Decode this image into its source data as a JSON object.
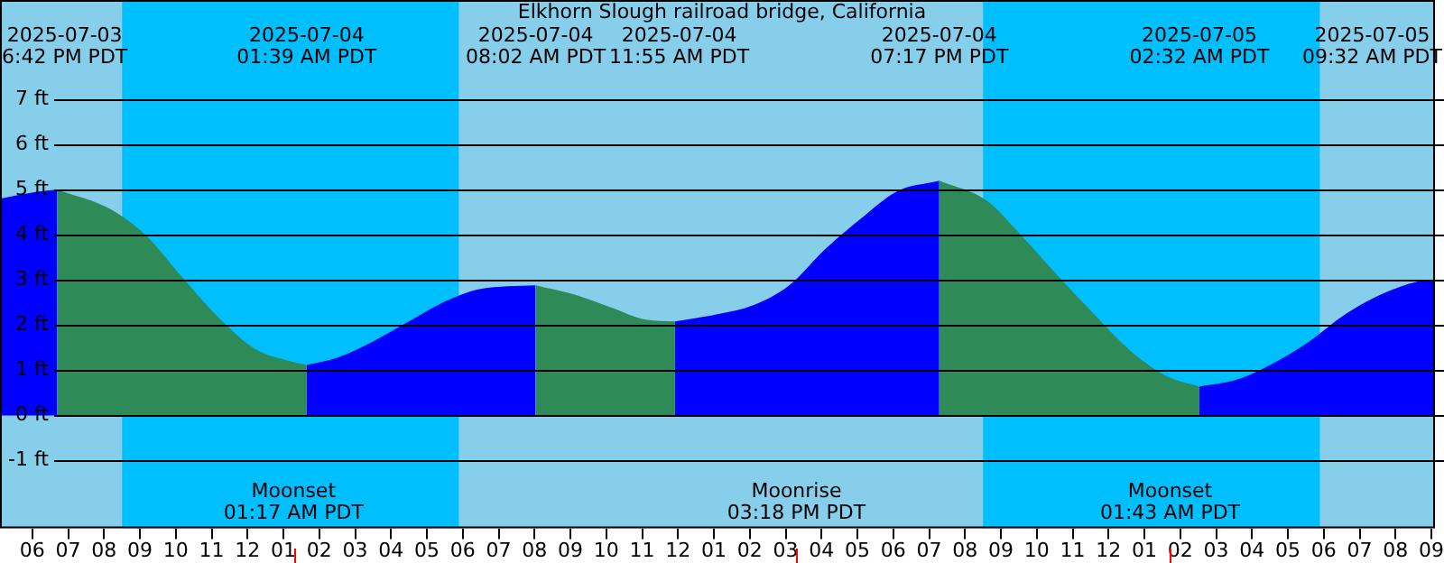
{
  "chart_data": {
    "type": "area",
    "title": "Elkhorn Slough railroad bridge, California",
    "xlim": [
      "2025-07-03T17:06",
      "2025-07-05T09:06"
    ],
    "xticks": [
      {
        "value": "2025-07-03T18:00",
        "label": "06"
      },
      {
        "value": "2025-07-03T19:00",
        "label": "07"
      },
      {
        "value": "2025-07-03T20:00",
        "label": "08"
      },
      {
        "value": "2025-07-03T21:00",
        "label": "09"
      },
      {
        "value": "2025-07-03T22:00",
        "label": "10"
      },
      {
        "value": "2025-07-03T23:00",
        "label": "11"
      },
      {
        "value": "2025-07-04T00:00",
        "label": "12"
      },
      {
        "value": "2025-07-04T01:00",
        "label": "01"
      },
      {
        "value": "2025-07-04T02:00",
        "label": "02"
      },
      {
        "value": "2025-07-04T03:00",
        "label": "03"
      },
      {
        "value": "2025-07-04T04:00",
        "label": "04"
      },
      {
        "value": "2025-07-04T05:00",
        "label": "05"
      },
      {
        "value": "2025-07-04T06:00",
        "label": "06"
      },
      {
        "value": "2025-07-04T07:00",
        "label": "07"
      },
      {
        "value": "2025-07-04T08:00",
        "label": "08"
      },
      {
        "value": "2025-07-04T09:00",
        "label": "09"
      },
      {
        "value": "2025-07-04T10:00",
        "label": "10"
      },
      {
        "value": "2025-07-04T11:00",
        "label": "11"
      },
      {
        "value": "2025-07-04T12:00",
        "label": "12"
      },
      {
        "value": "2025-07-04T13:00",
        "label": "01"
      },
      {
        "value": "2025-07-04T14:00",
        "label": "02"
      },
      {
        "value": "2025-07-04T15:00",
        "label": "03"
      },
      {
        "value": "2025-07-04T16:00",
        "label": "04"
      },
      {
        "value": "2025-07-04T17:00",
        "label": "05"
      },
      {
        "value": "2025-07-04T18:00",
        "label": "06"
      },
      {
        "value": "2025-07-04T19:00",
        "label": "07"
      },
      {
        "value": "2025-07-04T20:00",
        "label": "08"
      },
      {
        "value": "2025-07-04T21:00",
        "label": "09"
      },
      {
        "value": "2025-07-04T22:00",
        "label": "10"
      },
      {
        "value": "2025-07-04T23:00",
        "label": "11"
      },
      {
        "value": "2025-07-05T00:00",
        "label": "12"
      },
      {
        "value": "2025-07-05T01:00",
        "label": "01"
      },
      {
        "value": "2025-07-05T02:00",
        "label": "02"
      },
      {
        "value": "2025-07-05T03:00",
        "label": "03"
      },
      {
        "value": "2025-07-05T04:00",
        "label": "04"
      },
      {
        "value": "2025-07-05T05:00",
        "label": "05"
      },
      {
        "value": "2025-07-05T06:00",
        "label": "06"
      },
      {
        "value": "2025-07-05T07:00",
        "label": "07"
      },
      {
        "value": "2025-07-05T08:00",
        "label": "08"
      },
      {
        "value": "2025-07-05T09:00",
        "label": "09"
      }
    ],
    "ylim": [
      -2.5,
      9.2
    ],
    "yticks": [
      {
        "value": -1,
        "label": "-1 ft"
      },
      {
        "value": 0,
        "label": "0 ft"
      },
      {
        "value": 1,
        "label": "1 ft"
      },
      {
        "value": 2,
        "label": "2 ft"
      },
      {
        "value": 3,
        "label": "3 ft"
      },
      {
        "value": 4,
        "label": "4 ft"
      },
      {
        "value": 5,
        "label": "5 ft"
      },
      {
        "value": 6,
        "label": "6 ft"
      },
      {
        "value": 7,
        "label": "7 ft"
      }
    ],
    "grid": "y",
    "legend": false,
    "bands": [
      {
        "axis": "x",
        "from": "2025-07-03T17:06",
        "to": "2025-07-03T20:30",
        "color": "#87ceeb"
      },
      {
        "axis": "x",
        "from": "2025-07-03T20:30",
        "to": "2025-07-04T05:54",
        "color": "#00bfff"
      },
      {
        "axis": "x",
        "from": "2025-07-04T05:54",
        "to": "2025-07-04T20:30",
        "color": "#87ceeb"
      },
      {
        "axis": "x",
        "from": "2025-07-04T20:30",
        "to": "2025-07-05T05:54",
        "color": "#00bfff"
      },
      {
        "axis": "x",
        "from": "2025-07-05T05:54",
        "to": "2025-07-05T09:06",
        "color": "#87ceeb"
      }
    ],
    "ref_lines": [
      {
        "axis": "x",
        "value": "2025-07-04T01:17",
        "label": "Moonset\n01:17 AM PDT",
        "color": "#ff0000"
      },
      {
        "axis": "x",
        "value": "2025-07-04T15:18",
        "label": "Moonrise\n03:18 PM PDT",
        "color": "#ff0000"
      },
      {
        "axis": "x",
        "value": "2025-07-05T01:43",
        "label": "Moonset\n01:43 AM PDT",
        "color": "#ff0000"
      }
    ],
    "series": [
      {
        "color": "#0000ff",
        "x": [
          "2025-07-03T17:06",
          "2025-07-03T18:06",
          "2025-07-03T18:42"
        ],
        "values": [
          4.8,
          4.95,
          5.0
        ]
      },
      {
        "color": "#2e8b57",
        "x": [
          "2025-07-03T18:42",
          "2025-07-03T20:12",
          "2025-07-03T21:12",
          "2025-07-03T22:12",
          "2025-07-03T23:12",
          "2025-07-04T00:12",
          "2025-07-04T01:12",
          "2025-07-04T01:39"
        ],
        "values": [
          5.0,
          4.56,
          3.96,
          3.04,
          2.16,
          1.48,
          1.2,
          1.12
        ]
      },
      {
        "color": "#0000ff",
        "x": [
          "2025-07-04T01:39",
          "2025-07-04T02:30",
          "2025-07-04T03:30",
          "2025-07-04T04:30",
          "2025-07-04T05:30",
          "2025-07-04T06:30",
          "2025-07-04T08:02"
        ],
        "values": [
          1.12,
          1.28,
          1.64,
          2.08,
          2.52,
          2.8,
          2.88
        ]
      },
      {
        "color": "#2e8b57",
        "x": [
          "2025-07-04T08:02",
          "2025-07-04T09:06",
          "2025-07-04T10:06",
          "2025-07-04T11:06",
          "2025-07-04T11:55"
        ],
        "values": [
          2.88,
          2.68,
          2.4,
          2.12,
          2.08
        ]
      },
      {
        "color": "#0000ff",
        "x": [
          "2025-07-04T11:55",
          "2025-07-04T13:06",
          "2025-07-04T14:06",
          "2025-07-04T15:06",
          "2025-07-04T16:06",
          "2025-07-04T17:06",
          "2025-07-04T18:06",
          "2025-07-04T19:17"
        ],
        "values": [
          2.08,
          2.24,
          2.44,
          2.88,
          3.68,
          4.36,
          4.96,
          5.2
        ]
      },
      {
        "color": "#2e8b57",
        "x": [
          "2025-07-04T19:17",
          "2025-07-04T20:36",
          "2025-07-04T21:36",
          "2025-07-04T22:36",
          "2025-07-04T23:36",
          "2025-07-05T00:36",
          "2025-07-05T01:36",
          "2025-07-05T02:32"
        ],
        "values": [
          5.2,
          4.76,
          3.96,
          3.08,
          2.24,
          1.44,
          0.88,
          0.64
        ]
      },
      {
        "color": "#0000ff",
        "x": [
          "2025-07-05T02:32",
          "2025-07-05T03:36",
          "2025-07-05T04:36",
          "2025-07-05T05:36",
          "2025-07-05T06:36",
          "2025-07-05T07:36",
          "2025-07-05T08:36",
          "2025-07-05T09:06"
        ],
        "values": [
          0.64,
          0.8,
          1.16,
          1.64,
          2.24,
          2.68,
          2.96,
          3.0
        ]
      }
    ],
    "annotations": [
      "2025-07-03\n6:42 PM PDT",
      "2025-07-04\n01:39 AM PDT",
      "2025-07-04\n08:02 AM PDT",
      "2025-07-04\n11:55 AM PDT",
      "2025-07-04\n07:17 PM PDT",
      "2025-07-05\n02:32 AM PDT",
      "2025-07-05\n09:32 AM PDT"
    ]
  }
}
